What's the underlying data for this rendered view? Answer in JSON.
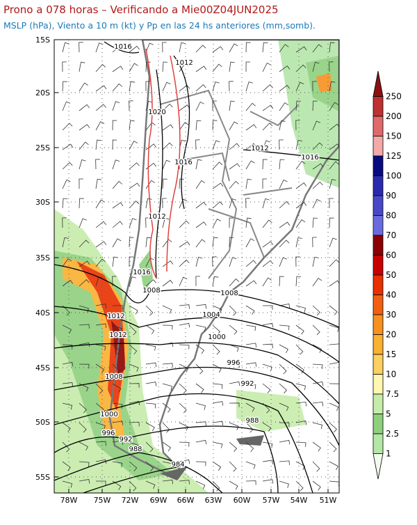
{
  "header": {
    "title": "Prono a 078 horas – Verificando a Mie00Z04JUN2025",
    "subtitle": "MSLP (hPa), Viento a 10 m (kt) y Pp en las 24 hs anteriores (mm,somb)."
  },
  "map": {
    "lat_labels": [
      "15S",
      "20S",
      "25S",
      "30S",
      "35S",
      "40S",
      "45S",
      "50S",
      "55S"
    ],
    "lon_labels": [
      "78W",
      "75W",
      "72W",
      "69W",
      "66W",
      "63W",
      "60W",
      "57W",
      "54W",
      "51W"
    ],
    "isobar_labels": [
      "1016",
      "1012",
      "1020",
      "1012",
      "1016",
      "1016",
      "1012",
      "1016",
      "1008",
      "1008",
      "1004",
      "1012",
      "1012",
      "1000",
      "996",
      "1008",
      "992",
      "1000",
      "988",
      "996",
      "992",
      "988",
      "984"
    ]
  },
  "colorbar": {
    "labels": [
      "250",
      "200",
      "150",
      "125",
      "100",
      "90",
      "80",
      "70",
      "60",
      "50",
      "40",
      "30",
      "20",
      "15",
      "10",
      "7.5",
      "5",
      "2.5",
      "1"
    ],
    "colors": [
      "#8b1010",
      "#c03030",
      "#e06a6a",
      "#f4a8a8",
      "#0a0a80",
      "#2a2ab0",
      "#4848c8",
      "#6a6ae0",
      "#8b0000",
      "#c80000",
      "#e83000",
      "#f06010",
      "#f89020",
      "#fab030",
      "#fcd060",
      "#fff7b0",
      "#c6ecaa",
      "#8ed07e",
      "#b4e6a8",
      "#f2fbee"
    ]
  }
}
